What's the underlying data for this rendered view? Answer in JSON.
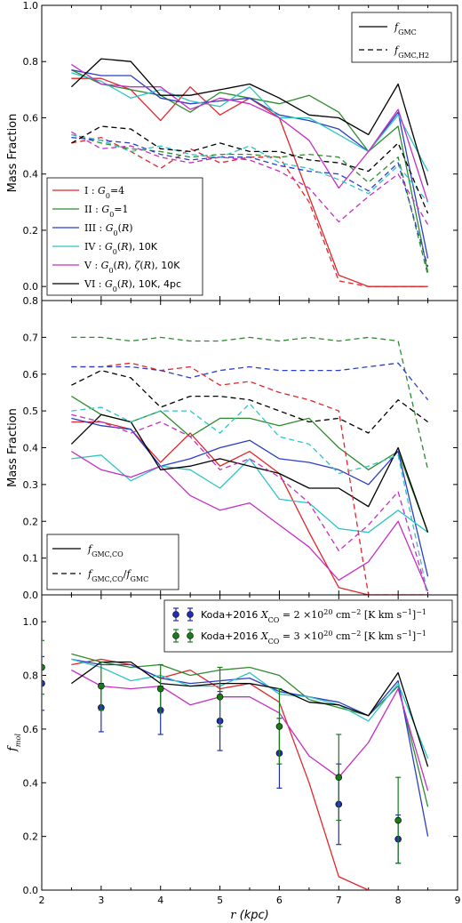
{
  "chart_data": [
    {
      "type": "line",
      "ylabel": "Mass Fraction",
      "xlim": [
        2,
        9
      ],
      "ylim": [
        -0.05,
        1.0
      ],
      "yticks": [
        "0.0",
        "0.2",
        "0.4",
        "0.6",
        "0.8",
        "1.0"
      ],
      "x": [
        2.5,
        3,
        3.5,
        4,
        4.5,
        5,
        5.5,
        6,
        6.5,
        7,
        7.5,
        8,
        8.5
      ],
      "models": [
        {
          "label": "I: G₀=4",
          "color": "#e0262b"
        },
        {
          "label": "II: G₀=1",
          "color": "#2e8b2e"
        },
        {
          "label": "III: G₀(R)",
          "color": "#2b3fc4"
        },
        {
          "label": "IV: G₀(R), 10K",
          "color": "#2ec4c4"
        },
        {
          "label": "V: G₀(R), ζ(R), 10K",
          "color": "#c42ec4"
        },
        {
          "label": "VI: G₀(R), 10K, 4pc",
          "color": "#000000"
        }
      ],
      "style_legend": [
        {
          "label": "f_GMC",
          "dash": "solid"
        },
        {
          "label": "f_GMC,H2",
          "dash": "dashed"
        }
      ],
      "series": [
        {
          "model": 0,
          "dash": "solid",
          "values": [
            0.74,
            0.74,
            0.7,
            0.59,
            0.71,
            0.61,
            0.67,
            0.6,
            0.32,
            0.04,
            0.0,
            0.0,
            0.0
          ]
        },
        {
          "model": 1,
          "dash": "solid",
          "values": [
            0.77,
            0.72,
            0.7,
            0.68,
            0.62,
            0.69,
            0.67,
            0.65,
            0.68,
            0.62,
            0.48,
            0.57,
            0.05
          ]
        },
        {
          "model": 2,
          "dash": "solid",
          "values": [
            0.77,
            0.75,
            0.75,
            0.67,
            0.65,
            0.66,
            0.67,
            0.61,
            0.59,
            0.56,
            0.48,
            0.62,
            0.1
          ]
        },
        {
          "model": 3,
          "dash": "solid",
          "values": [
            0.76,
            0.73,
            0.67,
            0.7,
            0.66,
            0.64,
            0.71,
            0.6,
            0.6,
            0.54,
            0.48,
            0.61,
            0.41
          ]
        },
        {
          "model": 4,
          "dash": "solid",
          "values": [
            0.79,
            0.72,
            0.71,
            0.71,
            0.63,
            0.67,
            0.65,
            0.6,
            0.52,
            0.35,
            0.48,
            0.63,
            0.3
          ]
        },
        {
          "model": 5,
          "dash": "solid",
          "values": [
            0.71,
            0.81,
            0.8,
            0.68,
            0.68,
            0.7,
            0.72,
            0.67,
            0.61,
            0.6,
            0.54,
            0.72,
            0.36
          ]
        },
        {
          "model": 0,
          "dash": "dashed",
          "values": [
            0.51,
            0.53,
            0.48,
            0.42,
            0.49,
            0.44,
            0.46,
            0.46,
            0.3,
            0.02,
            0.0,
            0.0,
            0.0
          ]
        },
        {
          "model": 1,
          "dash": "dashed",
          "values": [
            0.54,
            0.51,
            0.49,
            0.48,
            0.46,
            0.47,
            0.47,
            0.46,
            0.47,
            0.46,
            0.37,
            0.46,
            0.04
          ]
        },
        {
          "model": 2,
          "dash": "dashed",
          "values": [
            0.53,
            0.52,
            0.51,
            0.47,
            0.45,
            0.46,
            0.46,
            0.43,
            0.41,
            0.4,
            0.34,
            0.44,
            0.07
          ]
        },
        {
          "model": 3,
          "dash": "dashed",
          "values": [
            0.54,
            0.52,
            0.48,
            0.5,
            0.47,
            0.46,
            0.5,
            0.44,
            0.42,
            0.38,
            0.33,
            0.43,
            0.3
          ]
        },
        {
          "model": 4,
          "dash": "dashed",
          "values": [
            0.55,
            0.49,
            0.5,
            0.46,
            0.44,
            0.46,
            0.45,
            0.41,
            0.35,
            0.23,
            0.32,
            0.4,
            0.22
          ]
        },
        {
          "model": 5,
          "dash": "dashed",
          "values": [
            0.51,
            0.57,
            0.56,
            0.49,
            0.48,
            0.51,
            0.48,
            0.48,
            0.45,
            0.44,
            0.41,
            0.51,
            0.26
          ]
        }
      ]
    },
    {
      "type": "line",
      "ylabel": "Mass Fraction",
      "xlim": [
        2,
        9
      ],
      "ylim": [
        0.0,
        0.8
      ],
      "yticks": [
        "0.0",
        "0.1",
        "0.2",
        "0.3",
        "0.4",
        "0.5",
        "0.6",
        "0.7",
        "0.8"
      ],
      "x": [
        2.5,
        3,
        3.5,
        4,
        4.5,
        5,
        5.5,
        6,
        6.5,
        7,
        7.5,
        8,
        8.5
      ],
      "style_legend": [
        {
          "label": "f_GMC,CO",
          "dash": "solid"
        },
        {
          "label": "f_GMC,CO/f_GMC",
          "dash": "dashed"
        }
      ],
      "series": [
        {
          "model": 0,
          "dash": "solid",
          "values": [
            0.47,
            0.47,
            0.45,
            0.36,
            0.44,
            0.35,
            0.39,
            0.33,
            0.17,
            0.02,
            0.0,
            0.0,
            0.0
          ]
        },
        {
          "model": 1,
          "dash": "solid",
          "values": [
            0.54,
            0.49,
            0.47,
            0.5,
            0.43,
            0.48,
            0.48,
            0.46,
            0.48,
            0.4,
            0.34,
            0.39,
            0.17
          ]
        },
        {
          "model": 2,
          "dash": "solid",
          "values": [
            0.48,
            0.46,
            0.45,
            0.35,
            0.37,
            0.4,
            0.42,
            0.37,
            0.36,
            0.34,
            0.3,
            0.39,
            0.05
          ]
        },
        {
          "model": 3,
          "dash": "solid",
          "values": [
            0.37,
            0.38,
            0.31,
            0.35,
            0.34,
            0.29,
            0.37,
            0.26,
            0.25,
            0.18,
            0.17,
            0.23,
            0.17
          ]
        },
        {
          "model": 4,
          "dash": "solid",
          "values": [
            0.39,
            0.34,
            0.32,
            0.35,
            0.27,
            0.23,
            0.25,
            0.19,
            0.13,
            0.04,
            0.09,
            0.2,
            0.01
          ]
        },
        {
          "model": 5,
          "dash": "solid",
          "values": [
            0.41,
            0.49,
            0.47,
            0.34,
            0.35,
            0.37,
            0.35,
            0.33,
            0.29,
            0.29,
            0.24,
            0.4,
            0.17
          ]
        },
        {
          "model": 0,
          "dash": "dashed",
          "values": [
            0.62,
            0.62,
            0.63,
            0.61,
            0.62,
            0.57,
            0.58,
            0.55,
            0.53,
            0.5,
            0.0,
            0.0,
            0.0
          ]
        },
        {
          "model": 1,
          "dash": "dashed",
          "values": [
            0.7,
            0.7,
            0.69,
            0.7,
            0.69,
            0.69,
            0.7,
            0.69,
            0.7,
            0.69,
            0.7,
            0.69,
            0.34
          ]
        },
        {
          "model": 2,
          "dash": "dashed",
          "values": [
            0.62,
            0.62,
            0.62,
            0.61,
            0.59,
            0.61,
            0.62,
            0.61,
            0.61,
            0.61,
            0.62,
            0.63,
            0.53
          ]
        },
        {
          "model": 3,
          "dash": "dashed",
          "values": [
            0.5,
            0.51,
            0.47,
            0.5,
            0.5,
            0.44,
            0.52,
            0.43,
            0.41,
            0.33,
            0.35,
            0.38,
            0.0
          ]
        },
        {
          "model": 4,
          "dash": "dashed",
          "values": [
            0.49,
            0.47,
            0.44,
            0.47,
            0.43,
            0.34,
            0.37,
            0.32,
            0.25,
            0.12,
            0.19,
            0.28,
            0.0
          ]
        },
        {
          "model": 5,
          "dash": "dashed",
          "values": [
            0.57,
            0.61,
            0.59,
            0.51,
            0.54,
            0.54,
            0.53,
            0.5,
            0.47,
            0.48,
            0.44,
            0.53,
            0.47
          ]
        }
      ]
    },
    {
      "type": "line",
      "ylabel": "f_mol",
      "xlabel": "r (kpc)",
      "xlim": [
        2,
        9
      ],
      "ylim": [
        0.0,
        1.1
      ],
      "yticks": [
        "0.0",
        "0.2",
        "0.4",
        "0.6",
        "0.8",
        "1.0"
      ],
      "xticks": [
        "2",
        "3",
        "4",
        "5",
        "6",
        "7",
        "8",
        "9"
      ],
      "x": [
        2.5,
        3,
        3.5,
        4,
        4.5,
        5,
        5.5,
        6,
        6.5,
        7,
        7.5,
        8,
        8.5
      ],
      "series": [
        {
          "model": 0,
          "dash": "solid",
          "values": [
            0.84,
            0.86,
            0.84,
            0.79,
            0.82,
            0.75,
            0.77,
            0.7,
            0.4,
            0.05,
            0.0,
            null,
            null
          ]
        },
        {
          "model": 1,
          "dash": "solid",
          "values": [
            0.88,
            0.85,
            0.83,
            0.84,
            0.8,
            0.82,
            0.83,
            0.8,
            0.71,
            0.68,
            0.65,
            0.76,
            0.31
          ]
        },
        {
          "model": 2,
          "dash": "solid",
          "values": [
            0.86,
            0.84,
            0.84,
            0.79,
            0.77,
            0.78,
            0.79,
            0.74,
            0.72,
            0.7,
            0.65,
            0.78,
            0.2
          ]
        },
        {
          "model": 3,
          "dash": "solid",
          "values": [
            0.86,
            0.83,
            0.78,
            0.8,
            0.76,
            0.76,
            0.81,
            0.73,
            0.72,
            0.69,
            0.63,
            0.77,
            0.49
          ]
        },
        {
          "model": 4,
          "dash": "solid",
          "values": [
            0.82,
            0.76,
            0.75,
            0.76,
            0.69,
            0.72,
            0.72,
            0.66,
            0.5,
            0.42,
            0.55,
            0.75,
            0.37
          ]
        },
        {
          "model": 5,
          "dash": "solid",
          "values": [
            0.77,
            0.85,
            0.85,
            0.77,
            0.76,
            0.77,
            0.77,
            0.75,
            0.7,
            0.69,
            0.65,
            0.81,
            0.46
          ]
        }
      ],
      "observations": [
        {
          "label": "Koda+2016 X_CO = 2×10²⁰ cm⁻² [K km s⁻¹]⁻¹",
          "color": "#1f2fb0",
          "x": [
            2,
            3,
            4,
            5,
            6,
            7,
            8
          ],
          "y": [
            0.77,
            0.68,
            0.67,
            0.63,
            0.51,
            0.32,
            0.19
          ],
          "err": [
            0.1,
            0.09,
            0.09,
            0.11,
            0.13,
            0.15,
            0.09
          ]
        },
        {
          "label": "Koda+2016 X_CO = 3×10²⁰ cm⁻² [K km s⁻¹]⁻¹",
          "color": "#1a7a1a",
          "x": [
            2,
            3,
            4,
            5,
            6,
            7,
            8
          ],
          "y": [
            0.83,
            0.76,
            0.75,
            0.72,
            0.61,
            0.42,
            0.26
          ],
          "err": [
            0.1,
            0.09,
            0.09,
            0.11,
            0.14,
            0.16,
            0.16
          ]
        }
      ]
    }
  ]
}
